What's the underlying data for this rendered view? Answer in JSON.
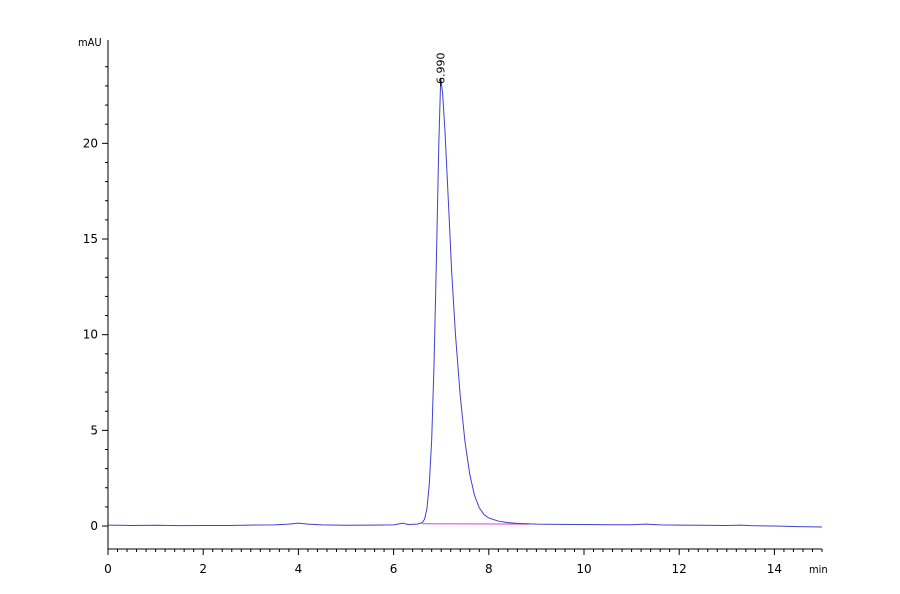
{
  "chart_data": {
    "type": "line",
    "title": "",
    "xlabel": "min",
    "ylabel": "mAU",
    "xlim": [
      0,
      15
    ],
    "ylim": [
      -1.2,
      25.4
    ],
    "x_ticks": [
      0,
      2,
      4,
      6,
      8,
      10,
      12,
      14
    ],
    "y_ticks": [
      0,
      5,
      10,
      15,
      20
    ],
    "grid": false,
    "legend": "none",
    "colors": {
      "signal": "#4040d0",
      "baseline": "#e040e0",
      "axis": "#000000"
    },
    "series": [
      {
        "color": "#4040d0",
        "points": [
          [
            0.0,
            0.05
          ],
          [
            0.5,
            0.03
          ],
          [
            1.0,
            0.04
          ],
          [
            1.5,
            0.02
          ],
          [
            2.0,
            0.03
          ],
          [
            2.5,
            0.03
          ],
          [
            3.0,
            0.05
          ],
          [
            3.5,
            0.06
          ],
          [
            3.8,
            0.1
          ],
          [
            4.0,
            0.15
          ],
          [
            4.2,
            0.1
          ],
          [
            4.5,
            0.06
          ],
          [
            5.0,
            0.04
          ],
          [
            5.5,
            0.05
          ],
          [
            6.0,
            0.06
          ],
          [
            6.2,
            0.15
          ],
          [
            6.3,
            0.08
          ],
          [
            6.5,
            0.1
          ],
          [
            6.6,
            0.18
          ],
          [
            6.65,
            0.35
          ],
          [
            6.7,
            0.9
          ],
          [
            6.75,
            2.2
          ],
          [
            6.8,
            4.5
          ],
          [
            6.85,
            8.5
          ],
          [
            6.9,
            14.0
          ],
          [
            6.95,
            20.0
          ],
          [
            6.99,
            23.4
          ],
          [
            7.03,
            22.6
          ],
          [
            7.08,
            20.6
          ],
          [
            7.15,
            17.0
          ],
          [
            7.22,
            13.3
          ],
          [
            7.3,
            10.0
          ],
          [
            7.4,
            6.8
          ],
          [
            7.5,
            4.4
          ],
          [
            7.6,
            2.7
          ],
          [
            7.7,
            1.6
          ],
          [
            7.8,
            0.95
          ],
          [
            7.9,
            0.6
          ],
          [
            8.0,
            0.42
          ],
          [
            8.2,
            0.26
          ],
          [
            8.4,
            0.18
          ],
          [
            8.6,
            0.14
          ],
          [
            8.8,
            0.12
          ],
          [
            9.0,
            0.1
          ],
          [
            9.5,
            0.09
          ],
          [
            10.0,
            0.08
          ],
          [
            10.5,
            0.07
          ],
          [
            11.0,
            0.07
          ],
          [
            11.3,
            0.1
          ],
          [
            11.6,
            0.06
          ],
          [
            12.0,
            0.05
          ],
          [
            12.5,
            0.04
          ],
          [
            13.0,
            0.03
          ],
          [
            13.3,
            0.05
          ],
          [
            13.5,
            0.02
          ],
          [
            14.0,
            0.0
          ],
          [
            14.5,
            -0.03
          ],
          [
            15.0,
            -0.05
          ]
        ]
      }
    ],
    "baseline": [
      [
        6.6,
        0.12
      ],
      [
        8.85,
        0.1
      ]
    ],
    "peak_annotations": [
      {
        "x": 6.99,
        "label": "6.990"
      }
    ]
  }
}
